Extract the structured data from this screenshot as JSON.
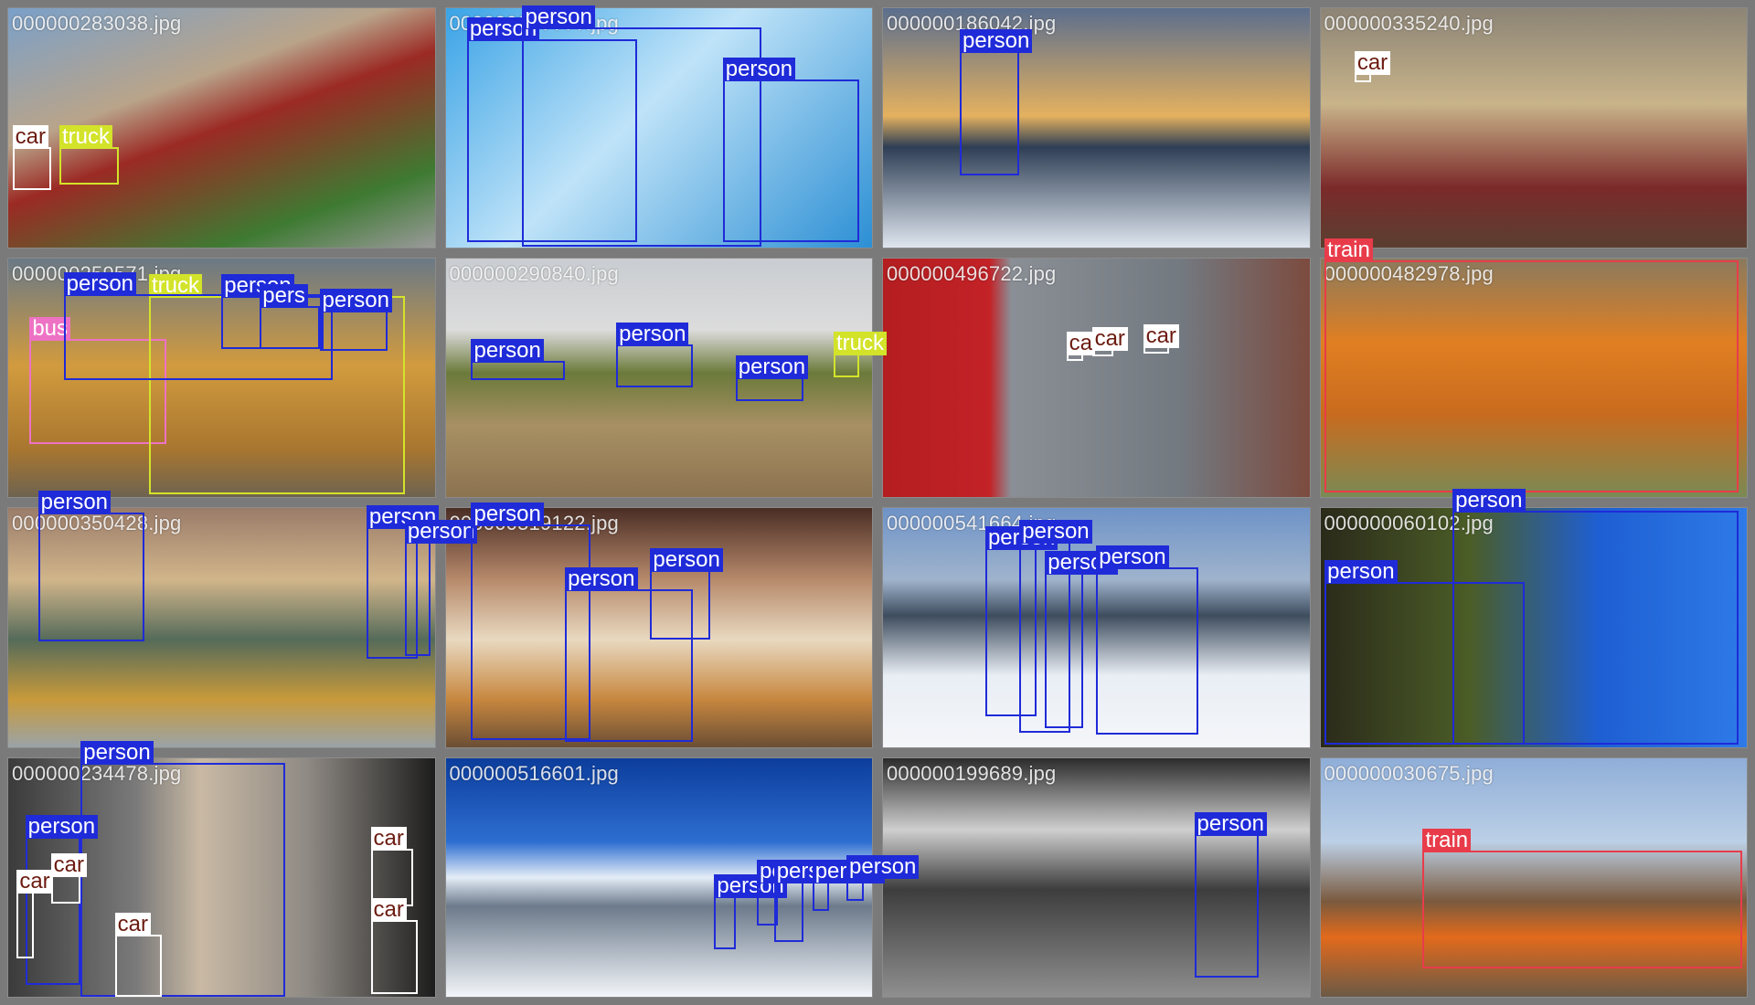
{
  "tiles": [
    {
      "file": "000000283038.jpg",
      "bg": "linear-gradient(160deg,#7aa0c9 0%,#b9a48a 35%,#9b2a24 50%,#3e7a32 80%,#9a9a9a 100%)",
      "boxes": [
        {
          "cls": "car",
          "label": "car",
          "l": 1,
          "t": 58,
          "w": 9,
          "h": 18
        },
        {
          "cls": "truck",
          "label": "truck",
          "l": 12,
          "t": 58,
          "w": 14,
          "h": 16
        }
      ]
    },
    {
      "file": "000000??????.jpg",
      "bg": "linear-gradient(135deg,#3aa3e6 0%,#bfe3f8 45%,#2c8fd4 100%)",
      "boxes": [
        {
          "cls": "person",
          "label": "person",
          "l": 5,
          "t": 13,
          "w": 40,
          "h": 85
        },
        {
          "cls": "person",
          "label": "person",
          "l": 18,
          "t": 8,
          "w": 56,
          "h": 92
        },
        {
          "cls": "person",
          "label": "person",
          "l": 65,
          "t": 30,
          "w": 32,
          "h": 68
        }
      ]
    },
    {
      "file": "000000186042.jpg",
      "bg": "linear-gradient(180deg,#5b6e8e 0%,#e4b15f 45%,#2e3e55 58%,#dfe6ef 100%)",
      "boxes": [
        {
          "cls": "person",
          "label": "person",
          "l": 18,
          "t": 18,
          "w": 14,
          "h": 52
        }
      ]
    },
    {
      "file": "000000335240.jpg",
      "bg": "linear-gradient(180deg,#8c8476 0%,#c9b48a 40%,#7b2a2a 75%,#5a3f30 100%)",
      "boxes": [
        {
          "cls": "car",
          "label": "car",
          "l": 8,
          "t": 27,
          "w": 4,
          "h": 4
        }
      ]
    },
    {
      "file": "000000259571.jpg",
      "bg": "linear-gradient(180deg,#6a7986 0%,#d29b3e 45%,#a8762f 80%,#6e6350 100%)",
      "boxes": [
        {
          "cls": "bus",
          "label": "bus",
          "l": 5,
          "t": 34,
          "w": 32,
          "h": 44
        },
        {
          "cls": "truck",
          "label": "truck",
          "l": 33,
          "t": 16,
          "w": 60,
          "h": 83
        },
        {
          "cls": "person",
          "label": "person",
          "l": 13,
          "t": 15,
          "w": 63,
          "h": 36
        },
        {
          "cls": "person",
          "label": "person",
          "l": 50,
          "t": 16,
          "w": 24,
          "h": 22
        },
        {
          "cls": "person",
          "label": "pers",
          "l": 59,
          "t": 20,
          "w": 14,
          "h": 18
        },
        {
          "cls": "person",
          "label": "person",
          "l": 73,
          "t": 22,
          "w": 16,
          "h": 17
        }
      ]
    },
    {
      "file": "000000290840.jpg",
      "bg": "linear-gradient(180deg,#c9cdd1 0%,#dcdcdc 30%,#6b7a3a 48%,#a89064 70%,#8c7350 100%)",
      "boxes": [
        {
          "cls": "person",
          "label": "person",
          "l": 6,
          "t": 43,
          "w": 22,
          "h": 8
        },
        {
          "cls": "person",
          "label": "person",
          "l": 40,
          "t": 36,
          "w": 18,
          "h": 18
        },
        {
          "cls": "person",
          "label": "person",
          "l": 68,
          "t": 50,
          "w": 16,
          "h": 10
        },
        {
          "cls": "truck",
          "label": "truck",
          "l": 91,
          "t": 40,
          "w": 6,
          "h": 10
        }
      ]
    },
    {
      "file": "000000496722.jpg",
      "bg": "linear-gradient(90deg,#b41e20 0%,#c32227 25%,#8a8f96 30%,#737980 70%,#7c4b3f 100%)",
      "boxes": [
        {
          "cls": "car",
          "label": "ca",
          "l": 43,
          "t": 40,
          "w": 4,
          "h": 3
        },
        {
          "cls": "car",
          "label": "car",
          "l": 49,
          "t": 38,
          "w": 5,
          "h": 3
        },
        {
          "cls": "car",
          "label": "car",
          "l": 61,
          "t": 37,
          "w": 6,
          "h": 3
        }
      ]
    },
    {
      "file": "000000482978.jpg",
      "bg": "linear-gradient(180deg,#8a7a5e 0%,#e07f22 35%,#c96b1e 65%,#7a8a54 100%)",
      "boxes": [
        {
          "cls": "train",
          "label": "train",
          "l": 1,
          "t": 1,
          "w": 97,
          "h": 97
        }
      ]
    },
    {
      "file": "000000350428.jpg",
      "bg": "linear-gradient(180deg,#9a7c6a 0%,#d1b58a 30%,#556b5a 55%,#c89a3b 80%,#9aa3a8 100%)",
      "boxes": [
        {
          "cls": "person",
          "label": "person",
          "l": 7,
          "t": 2,
          "w": 25,
          "h": 54
        },
        {
          "cls": "person",
          "label": "person",
          "l": 84,
          "t": 8,
          "w": 12,
          "h": 55
        },
        {
          "cls": "person",
          "label": "person",
          "l": 93,
          "t": 14,
          "w": 6,
          "h": 48
        }
      ]
    },
    {
      "file": "000000519122.jpg",
      "bg": "linear-gradient(180deg,#4a2d25 0%,#b78a6b 30%,#e8d9c0 55%,#c7873f 80%,#6b4e34 100%)",
      "boxes": [
        {
          "cls": "person",
          "label": "person",
          "l": 6,
          "t": 7,
          "w": 28,
          "h": 90
        },
        {
          "cls": "person",
          "label": "person",
          "l": 28,
          "t": 34,
          "w": 30,
          "h": 64
        },
        {
          "cls": "person",
          "label": "person",
          "l": 48,
          "t": 26,
          "w": 14,
          "h": 29
        }
      ]
    },
    {
      "file": "000000541664.jpg",
      "bg": "linear-gradient(180deg,#6e93c8 0%,#9fb3cc 30%,#3e4d5e 45%,#e9eef5 70%,#f4f6f9 100%)",
      "boxes": [
        {
          "cls": "person",
          "label": "person",
          "l": 24,
          "t": 17,
          "w": 12,
          "h": 70
        },
        {
          "cls": "person",
          "label": "person",
          "l": 32,
          "t": 14,
          "w": 12,
          "h": 80
        },
        {
          "cls": "person",
          "label": "person",
          "l": 38,
          "t": 27,
          "w": 9,
          "h": 65
        },
        {
          "cls": "person",
          "label": "person",
          "l": 50,
          "t": 25,
          "w": 24,
          "h": 70
        }
      ]
    },
    {
      "file": "000000060102.jpg",
      "bg": "linear-gradient(90deg,#2b2a1a 0%,#4b5d27 35%,#1e5fd3 65%,#2e7ae8 100%)",
      "boxes": [
        {
          "cls": "person",
          "label": "person",
          "l": 1,
          "t": 31,
          "w": 47,
          "h": 68
        },
        {
          "cls": "person",
          "label": "person",
          "l": 31,
          "t": 1,
          "w": 67,
          "h": 98
        }
      ]
    },
    {
      "file": "000000234478.jpg",
      "bg": "linear-gradient(90deg,#3b3b3b 0%,#7a7a7a 30%,#c9b9a4 45%,#8f8a84 70%,#1d1d1d 100%)",
      "boxes": [
        {
          "cls": "person",
          "label": "person",
          "l": 17,
          "t": 2,
          "w": 48,
          "h": 98
        },
        {
          "cls": "person",
          "label": "person",
          "l": 4,
          "t": 33,
          "w": 13,
          "h": 62
        },
        {
          "cls": "car",
          "label": "car",
          "l": 10,
          "t": 49,
          "w": 7,
          "h": 12
        },
        {
          "cls": "car",
          "label": "car",
          "l": 2,
          "t": 56,
          "w": 4,
          "h": 28
        },
        {
          "cls": "car",
          "label": "car",
          "l": 25,
          "t": 74,
          "w": 11,
          "h": 26
        },
        {
          "cls": "car",
          "label": "car",
          "l": 85,
          "t": 38,
          "w": 10,
          "h": 24
        },
        {
          "cls": "car",
          "label": "car",
          "l": 85,
          "t": 68,
          "w": 11,
          "h": 31
        }
      ]
    },
    {
      "file": "000000516601.jpg",
      "bg": "linear-gradient(180deg,#0c3d9c 0%,#2d6ed1 35%,#e4edf7 50%,#6c7a8b 62%,#f2f5f9 100%)",
      "boxes": [
        {
          "cls": "person",
          "label": "person",
          "l": 63,
          "t": 58,
          "w": 5,
          "h": 22
        },
        {
          "cls": "person",
          "label": "person",
          "l": 73,
          "t": 52,
          "w": 5,
          "h": 18
        },
        {
          "cls": "person",
          "label": "person",
          "l": 77,
          "t": 52,
          "w": 7,
          "h": 25
        },
        {
          "cls": "person",
          "label": "person",
          "l": 86,
          "t": 52,
          "w": 4,
          "h": 12
        },
        {
          "cls": "person",
          "label": "person",
          "l": 94,
          "t": 50,
          "w": 4,
          "h": 10
        }
      ]
    },
    {
      "file": "000000199689.jpg",
      "bg": "linear-gradient(180deg,#2c2c2c 0%,#cfcfcf 30%,#3d3d3d 55%,#8f8f8f 100%)",
      "boxes": [
        {
          "cls": "person",
          "label": "person",
          "l": 73,
          "t": 32,
          "w": 15,
          "h": 60
        }
      ]
    },
    {
      "file": "000000030675.jpg",
      "bg": "linear-gradient(180deg,#8faed8 0%,#bcd0e6 35%,#7a5a3e 60%,#e26a1c 75%,#6b5a46 100%)",
      "boxes": [
        {
          "cls": "train",
          "label": "train",
          "l": 24,
          "t": 39,
          "w": 75,
          "h": 49
        }
      ]
    }
  ]
}
